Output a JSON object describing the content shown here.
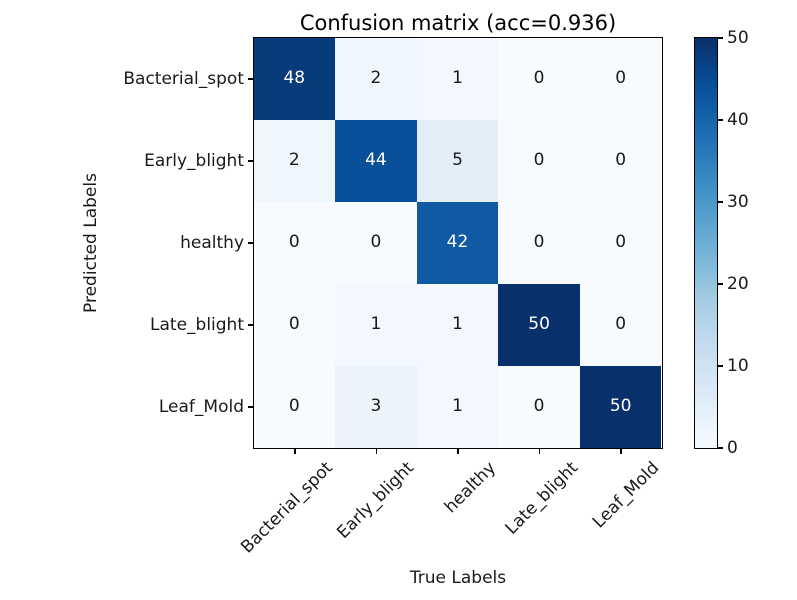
{
  "chart_data": {
    "type": "heatmap",
    "title": "Confusion matrix (acc=0.936)",
    "xlabel": "True Labels",
    "ylabel": "Predicted Labels",
    "x_categories": [
      "Bacterial_spot",
      "Early_blight",
      "healthy",
      "Late_blight",
      "Leaf_Mold"
    ],
    "y_categories": [
      "Bacterial_spot",
      "Early_blight",
      "healthy",
      "Late_blight",
      "Leaf_Mold"
    ],
    "matrix": [
      [
        48,
        2,
        1,
        0,
        0
      ],
      [
        2,
        44,
        5,
        0,
        0
      ],
      [
        0,
        0,
        42,
        0,
        0
      ],
      [
        0,
        1,
        1,
        50,
        0
      ],
      [
        0,
        3,
        1,
        0,
        50
      ]
    ],
    "vmin": 0,
    "vmax": 50,
    "annotation_threshold": 25,
    "colormap_name": "Blues",
    "colormap_stops": [
      "#f7fbff",
      "#deebf7",
      "#c6dbef",
      "#9ecae1",
      "#6baed6",
      "#4292c6",
      "#2171b5",
      "#08519c",
      "#08306b"
    ],
    "colorbar_ticks": [
      0,
      10,
      20,
      30,
      40,
      50
    ],
    "legend_position": "right-colorbar",
    "grid": false,
    "cell_text_color_light": "#ffffff",
    "cell_text_color_dark": "#1a1a1a",
    "axis_color": "#000000"
  }
}
